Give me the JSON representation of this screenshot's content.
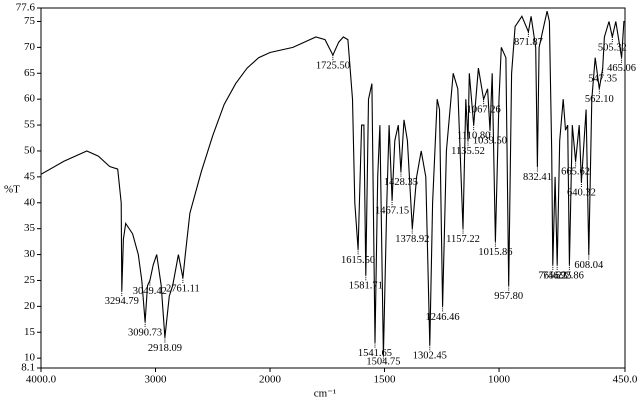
{
  "chart_data": {
    "type": "line",
    "color": "#000000",
    "xlabel": "cm⁻¹",
    "ylabel": "%T",
    "xlim": [
      4000,
      450
    ],
    "x_scale_change": 2000,
    "ylim": [
      8.1,
      77.6
    ],
    "xticks": [
      {
        "value": 4000,
        "label": "4000.0"
      },
      3000,
      2000,
      1500,
      1000,
      {
        "value": 450,
        "label": "450.0"
      }
    ],
    "yticks": [
      8.1,
      10,
      15,
      20,
      25,
      30,
      35,
      40,
      45,
      50,
      55,
      60,
      65,
      70,
      75,
      77.6
    ],
    "x": [
      4000,
      3800,
      3600,
      3500,
      3400,
      3330,
      3300,
      3294.79,
      3280,
      3260,
      3200,
      3150,
      3120,
      3090.73,
      3070,
      3049.42,
      3020,
      2990,
      2950,
      2918.09,
      2880,
      2850,
      2800,
      2761.11,
      2740,
      2700,
      2600,
      2500,
      2400,
      2300,
      2200,
      2100,
      2000,
      1900,
      1800,
      1760,
      1725.5,
      1700,
      1680,
      1660,
      1640,
      1630,
      1615.5,
      1600,
      1590,
      1581.71,
      1570,
      1555,
      1541.65,
      1530,
      1520,
      1504.75,
      1490,
      1480,
      1467.15,
      1455,
      1440,
      1428.35,
      1415,
      1400,
      1378.92,
      1360,
      1340,
      1320,
      1302.45,
      1290,
      1270,
      1260,
      1246.46,
      1230,
      1200,
      1180,
      1157.22,
      1145,
      1135.52,
      1130,
      1110.8,
      1090,
      1067.26,
      1050,
      1039.5,
      1030,
      1015.86,
      1000,
      990,
      970,
      957.8,
      945,
      930,
      900,
      871.87,
      860,
      840,
      832.41,
      825,
      800,
      790,
      780,
      770,
      765.23,
      755,
      746.25,
      735,
      720,
      710,
      700,
      692.86,
      680,
      665.62,
      650,
      640.32,
      620,
      608.04,
      595,
      580,
      562.1,
      547.35,
      540,
      520,
      505.32,
      490,
      465.06,
      455,
      450
    ],
    "values": [
      45.5,
      48,
      50,
      49,
      47,
      46.5,
      40,
      23,
      33,
      36,
      34,
      30,
      25,
      17,
      24,
      25,
      28,
      30,
      24,
      14,
      22,
      24,
      30,
      25.5,
      30,
      38,
      46,
      53,
      59,
      63,
      66,
      68,
      69,
      70,
      72,
      71.5,
      68.5,
      71,
      72,
      71.5,
      60,
      40,
      31,
      55,
      55,
      26,
      60,
      63,
      13,
      45,
      55,
      10.5,
      40,
      55,
      40.5,
      52,
      55,
      46,
      56,
      52,
      35,
      45,
      50,
      45,
      12.5,
      40,
      60,
      58,
      20,
      50,
      65,
      62,
      35,
      60,
      52,
      65,
      55,
      66,
      60,
      62,
      54,
      65,
      32.5,
      60,
      70,
      68,
      24,
      65,
      74,
      76,
      73,
      76,
      70,
      47,
      70,
      75,
      77,
      75,
      50,
      28,
      45,
      28,
      52,
      60,
      54,
      55,
      28,
      55,
      48,
      55,
      44,
      58,
      30,
      60,
      68,
      62,
      66,
      72,
      75,
      72,
      75,
      68,
      75,
      75
    ],
    "annotations": [
      {
        "text": "3294.79",
        "x": 3294.79,
        "y": 23
      },
      {
        "text": "3049.42",
        "x": 3049.42,
        "y": 25
      },
      {
        "text": "3090.73",
        "x": 3090.73,
        "y": 17
      },
      {
        "text": "2918.09",
        "x": 2918.09,
        "y": 14
      },
      {
        "text": "2761.11",
        "x": 2761.11,
        "y": 25.5
      },
      {
        "text": "1725.50",
        "x": 1725.5,
        "y": 68.5
      },
      {
        "text": "1615.50",
        "x": 1615.5,
        "y": 31
      },
      {
        "text": "1581.71",
        "x": 1581.71,
        "y": 26
      },
      {
        "text": "1541.65",
        "x": 1541.65,
        "y": 13
      },
      {
        "text": "1504.75",
        "x": 1504.75,
        "y": 10.5
      },
      {
        "text": "1467.15",
        "x": 1467.15,
        "y": 40.5
      },
      {
        "text": "1428.35",
        "x": 1428.35,
        "y": 46
      },
      {
        "text": "1378.92",
        "x": 1378.92,
        "y": 35
      },
      {
        "text": "1302.45",
        "x": 1302.45,
        "y": 12.5
      },
      {
        "text": "1246.46",
        "x": 1246.46,
        "y": 20
      },
      {
        "text": "1157.22",
        "x": 1157.22,
        "y": 35
      },
      {
        "text": "1135.52",
        "x": 1135.52,
        "y": 52
      },
      {
        "text": "1110.80",
        "x": 1110.8,
        "y": 55
      },
      {
        "text": "1067.26",
        "x": 1067.26,
        "y": 60
      },
      {
        "text": "1039.50",
        "x": 1039.5,
        "y": 54
      },
      {
        "text": "1015.86",
        "x": 1015.86,
        "y": 32.5
      },
      {
        "text": "957.80",
        "x": 957.8,
        "y": 24
      },
      {
        "text": "871.87",
        "x": 871.87,
        "y": 73
      },
      {
        "text": "832.41",
        "x": 832.41,
        "y": 47
      },
      {
        "text": "765.23",
        "x": 765.23,
        "y": 28
      },
      {
        "text": "746.25",
        "x": 746.25,
        "y": 28
      },
      {
        "text": "692.86",
        "x": 692.86,
        "y": 28
      },
      {
        "text": "665.62",
        "x": 665.62,
        "y": 48
      },
      {
        "text": "640.32",
        "x": 640.32,
        "y": 44
      },
      {
        "text": "608.04",
        "x": 608.04,
        "y": 30
      },
      {
        "text": "562.10",
        "x": 562.1,
        "y": 62
      },
      {
        "text": "547.35",
        "x": 547.35,
        "y": 66
      },
      {
        "text": "505.32",
        "x": 505.32,
        "y": 72
      },
      {
        "text": "465.06",
        "x": 465.06,
        "y": 68
      }
    ]
  }
}
